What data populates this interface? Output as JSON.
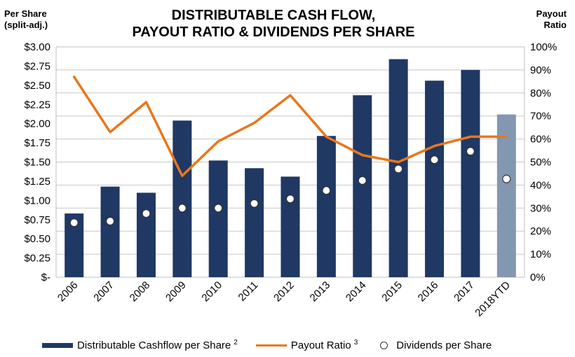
{
  "title_line1": "DISTRIBUTABLE CASH FLOW,",
  "title_line2": "PAYOUT RATIO & DIVIDENDS PER SHARE",
  "left_axis_label_line1": "Per Share",
  "left_axis_label_line2": "(split-adj.)",
  "right_axis_label_line1": "Payout",
  "right_axis_label_line2": "Ratio",
  "colors": {
    "bar": "#1f3864",
    "bar_ytd": "#8497b0",
    "line": "#e8771c",
    "dot_fill": "#ffffff"
  },
  "legend": {
    "bar_label": "Distributable Cashflow per Share",
    "bar_sup": "2",
    "line_label": "Payout Ratio",
    "line_sup": "3",
    "dot_label": "Dividends per Share"
  },
  "chart_data": {
    "type": "bar",
    "categories": [
      "2006",
      "2007",
      "2008",
      "2009",
      "2010",
      "2011",
      "2012",
      "2013",
      "2014",
      "2015",
      "2016",
      "2017",
      "2018YTD"
    ],
    "series": [
      {
        "name": "Distributable Cashflow per Share",
        "type": "bar",
        "axis": "left",
        "values": [
          0.83,
          1.18,
          1.1,
          2.04,
          1.52,
          1.42,
          1.31,
          1.84,
          2.37,
          2.84,
          2.56,
          2.7,
          2.12
        ]
      },
      {
        "name": "Payout Ratio",
        "type": "line",
        "axis": "right",
        "values": [
          87,
          63,
          76,
          44,
          59,
          67,
          79,
          61,
          53,
          50,
          57,
          61,
          61
        ]
      },
      {
        "name": "Dividends per Share",
        "type": "scatter",
        "axis": "left",
        "values": [
          0.71,
          0.73,
          0.83,
          0.9,
          0.9,
          0.96,
          1.02,
          1.13,
          1.26,
          1.41,
          1.53,
          1.64,
          1.28
        ]
      }
    ],
    "y_left": {
      "min": 0,
      "max": 3.0,
      "step": 0.25,
      "tick_labels": [
        "$-",
        "$0.25",
        "$0.50",
        "$0.75",
        "$1.00",
        "$1.25",
        "$1.50",
        "$1.75",
        "$2.00",
        "$2.25",
        "$2.50",
        "$2.75",
        "$3.00"
      ]
    },
    "y_right": {
      "min": 0,
      "max": 100,
      "step": 10,
      "tick_labels": [
        "0%",
        "10%",
        "20%",
        "30%",
        "40%",
        "50%",
        "60%",
        "70%",
        "80%",
        "90%",
        "100%"
      ]
    },
    "grid": true,
    "legend_position": "bottom"
  }
}
